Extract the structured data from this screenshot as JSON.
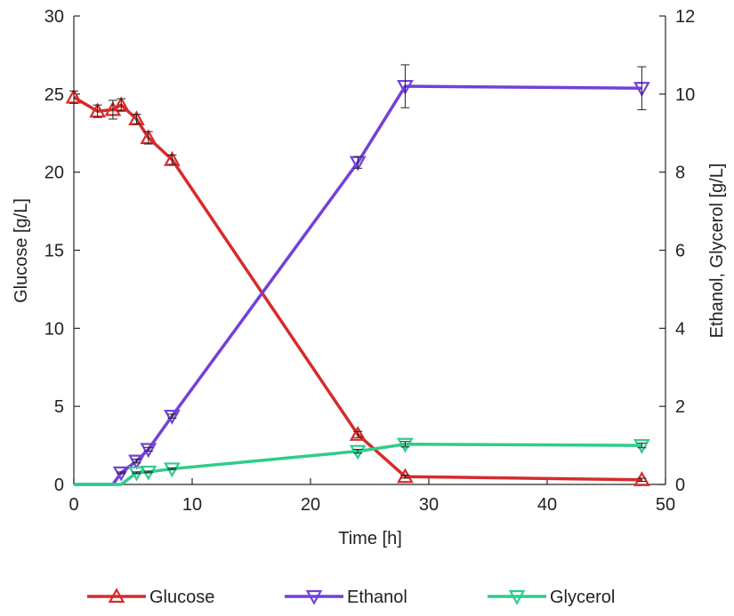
{
  "chart_data": {
    "type": "line",
    "xlabel": "Time [h]",
    "ylabel_left": "Glucose [g/L]",
    "ylabel_right": "Ethanol, Glycerol [g/L]",
    "xlim": [
      0,
      50
    ],
    "ylim_left": [
      0,
      30
    ],
    "ylim_right": [
      0,
      12
    ],
    "x_ticks": [
      0,
      10,
      20,
      30,
      40,
      50
    ],
    "y_left_ticks": [
      0,
      5,
      10,
      15,
      20,
      25,
      30
    ],
    "y_right_ticks": [
      0,
      2,
      4,
      6,
      8,
      10,
      12
    ],
    "grid": false,
    "legend_position": "bottom",
    "series": [
      {
        "name": "Glucose",
        "axis": "left",
        "color": "#d62b2b",
        "marker": "triangle-up",
        "x": [
          0,
          2,
          3.3,
          4,
          5.3,
          6.3,
          8.3,
          24,
          28,
          48
        ],
        "y": [
          24.8,
          23.9,
          24.0,
          24.3,
          23.4,
          22.2,
          20.8,
          3.2,
          0.5,
          0.3
        ],
        "err": [
          0.4,
          0.4,
          0.6,
          0.4,
          0.3,
          0.4,
          0.3,
          0.2,
          0.1,
          0.1
        ]
      },
      {
        "name": "Ethanol",
        "axis": "right",
        "color": "#7340d8",
        "marker": "triangle-down",
        "x": [
          0,
          3.3,
          4,
          5.3,
          6.3,
          8.3,
          24,
          28,
          48
        ],
        "y": [
          0,
          0,
          0.3,
          0.6,
          0.9,
          1.75,
          8.25,
          10.2,
          10.15
        ],
        "err": [
          0,
          0,
          0.02,
          0.05,
          0.05,
          0.05,
          0.15,
          0.55,
          0.55
        ]
      },
      {
        "name": "Glycerol",
        "axis": "right",
        "color": "#2ecc8a",
        "marker": "triangle-down",
        "x": [
          0,
          4,
          5.3,
          6.3,
          8.3,
          24,
          28,
          48
        ],
        "y": [
          0,
          0,
          0.3,
          0.32,
          0.4,
          0.85,
          1.03,
          1.0
        ],
        "err": [
          0,
          0,
          0.02,
          0.02,
          0.02,
          0.05,
          0.07,
          0.06
        ]
      }
    ]
  }
}
